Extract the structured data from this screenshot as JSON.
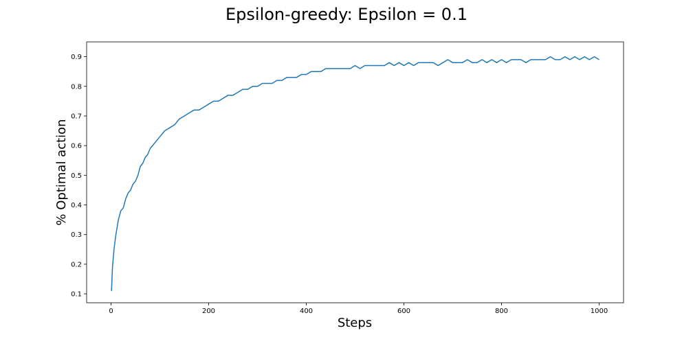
{
  "chart_data": {
    "type": "line",
    "title": "Epsilon-greedy: Epsilon = 0.1",
    "xlabel": "Steps",
    "ylabel": "% Optimal action",
    "xlim": [
      -50,
      1050
    ],
    "ylim": [
      0.07,
      0.95
    ],
    "x_ticks": [
      0,
      200,
      400,
      600,
      800,
      1000
    ],
    "y_ticks": [
      0.1,
      0.2,
      0.3,
      0.4,
      0.5,
      0.6,
      0.7,
      0.8,
      0.9
    ],
    "x_tick_labels": [
      "0",
      "200",
      "400",
      "600",
      "800",
      "1000"
    ],
    "y_tick_labels": [
      "0.1",
      "0.2",
      "0.3",
      "0.4",
      "0.5",
      "0.6",
      "0.7",
      "0.8",
      "0.9"
    ],
    "grid": false,
    "color": "#1f77b4",
    "series": [
      {
        "x": [
          1,
          3,
          6,
          10,
          15,
          20,
          25,
          30,
          35,
          40,
          45,
          50,
          55,
          60,
          65,
          70,
          75,
          80,
          85,
          90,
          95,
          100,
          110,
          120,
          130,
          140,
          150,
          160,
          170,
          180,
          190,
          200,
          210,
          220,
          230,
          240,
          250,
          260,
          270,
          280,
          290,
          300,
          310,
          320,
          330,
          340,
          350,
          360,
          370,
          380,
          390,
          400,
          410,
          420,
          430,
          440,
          450,
          460,
          470,
          480,
          490,
          500,
          510,
          520,
          530,
          540,
          550,
          560,
          570,
          580,
          590,
          600,
          610,
          620,
          630,
          640,
          650,
          660,
          670,
          680,
          690,
          700,
          710,
          720,
          730,
          740,
          750,
          760,
          770,
          780,
          790,
          800,
          810,
          820,
          830,
          840,
          850,
          860,
          870,
          880,
          890,
          900,
          910,
          920,
          930,
          940,
          950,
          960,
          970,
          980,
          990,
          1000
        ],
        "values": [
          0.11,
          0.19,
          0.25,
          0.3,
          0.35,
          0.38,
          0.39,
          0.42,
          0.44,
          0.45,
          0.47,
          0.48,
          0.5,
          0.53,
          0.54,
          0.56,
          0.57,
          0.59,
          0.6,
          0.61,
          0.62,
          0.63,
          0.65,
          0.66,
          0.67,
          0.69,
          0.7,
          0.71,
          0.72,
          0.72,
          0.73,
          0.74,
          0.75,
          0.75,
          0.76,
          0.77,
          0.77,
          0.78,
          0.79,
          0.79,
          0.8,
          0.8,
          0.81,
          0.81,
          0.81,
          0.82,
          0.82,
          0.83,
          0.83,
          0.83,
          0.84,
          0.84,
          0.85,
          0.85,
          0.85,
          0.86,
          0.86,
          0.86,
          0.86,
          0.86,
          0.86,
          0.87,
          0.86,
          0.87,
          0.87,
          0.87,
          0.87,
          0.87,
          0.88,
          0.87,
          0.88,
          0.87,
          0.88,
          0.87,
          0.88,
          0.88,
          0.88,
          0.88,
          0.87,
          0.88,
          0.89,
          0.88,
          0.88,
          0.88,
          0.89,
          0.88,
          0.88,
          0.89,
          0.88,
          0.89,
          0.88,
          0.89,
          0.88,
          0.89,
          0.89,
          0.89,
          0.88,
          0.89,
          0.89,
          0.89,
          0.89,
          0.9,
          0.89,
          0.89,
          0.9,
          0.89,
          0.9,
          0.89,
          0.9,
          0.89,
          0.9,
          0.89
        ]
      }
    ]
  }
}
